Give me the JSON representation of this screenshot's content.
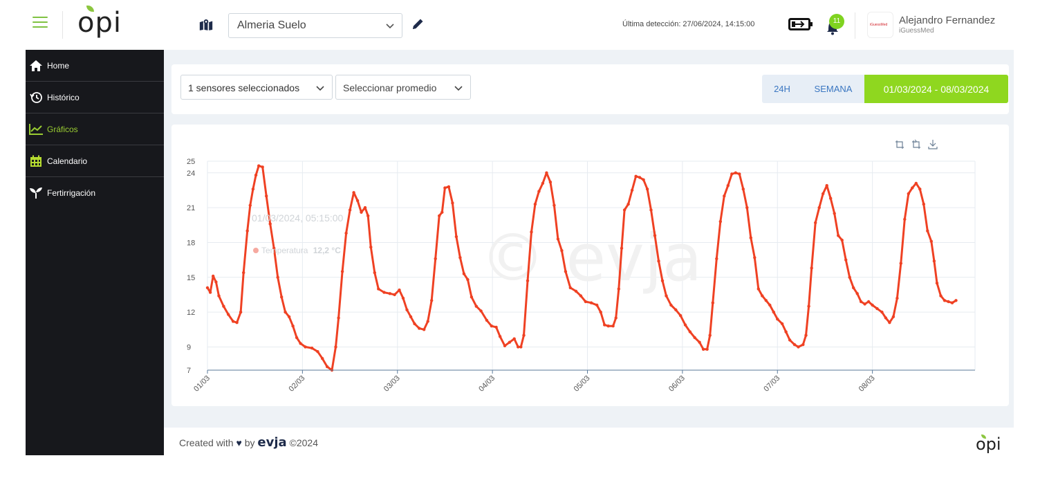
{
  "header": {
    "logo_text": "opi",
    "field_select_value": "Almeria Suelo",
    "last_detection": "Última detección: 27/06/2024, 14:15:00",
    "notification_count": "11",
    "user_name": "Alejandro Fernandez",
    "user_org": "iGuessMed",
    "avatar_text": "iGuessMed",
    "icons": [
      "menu-icon",
      "map-icon",
      "chevron-down-icon",
      "pencil-icon",
      "battery-charging-icon",
      "bell-icon"
    ]
  },
  "sidebar": {
    "items": [
      {
        "label": "Home",
        "icon": "home-icon"
      },
      {
        "label": "Histórico",
        "icon": "history-icon"
      },
      {
        "label": "Gráficos",
        "icon": "chart-line-icon",
        "active": true
      },
      {
        "label": "Calendario",
        "icon": "calendar-icon"
      },
      {
        "label": "Fertirrigación",
        "icon": "sprout-icon"
      }
    ]
  },
  "filters": {
    "sensors": "1 sensores seleccionados",
    "average": "Seleccionar promedio",
    "range_24h": "24H",
    "range_week": "SEMANA",
    "range_dates": "01/03/2024 - 08/03/2024"
  },
  "chart": {
    "watermark": "© evja",
    "tooltip_title": "01/03/2024, 05:15:00",
    "tooltip_label": "Temperatura",
    "tooltip_value": "12,2 °C",
    "tools": [
      "zoom-icon",
      "zoom-reset-icon",
      "download-icon"
    ]
  },
  "chart_data": {
    "type": "line",
    "title": "",
    "xlabel": "",
    "ylabel": "",
    "x_ticks": [
      "01/03",
      "02/03",
      "03/03",
      "04/03",
      "05/03",
      "06/03",
      "07/03",
      "08/03"
    ],
    "y_ticks": [
      7,
      9,
      12,
      15,
      18,
      21,
      24,
      25
    ],
    "ylim": [
      7,
      25
    ],
    "xlim": [
      0,
      8.08
    ],
    "grid": true,
    "colors": {
      "series": "#ef4123",
      "grid": "#e6ebf0",
      "axis": "#5a7a9a"
    },
    "series": [
      {
        "name": "Temperatura",
        "points": [
          [
            0.0,
            14.1
          ],
          [
            0.03,
            13.7
          ],
          [
            0.06,
            15.1
          ],
          [
            0.09,
            14.6
          ],
          [
            0.12,
            13.4
          ],
          [
            0.17,
            12.5
          ],
          [
            0.22,
            11.8
          ],
          [
            0.27,
            11.2
          ],
          [
            0.31,
            11.1
          ],
          [
            0.35,
            12.0
          ],
          [
            0.38,
            15.4
          ],
          [
            0.42,
            19.0
          ],
          [
            0.45,
            21.2
          ],
          [
            0.48,
            22.6
          ],
          [
            0.51,
            23.8
          ],
          [
            0.54,
            24.6
          ],
          [
            0.58,
            24.5
          ],
          [
            0.62,
            22.0
          ],
          [
            0.66,
            19.6
          ],
          [
            0.7,
            17.5
          ],
          [
            0.74,
            15.0
          ],
          [
            0.78,
            13.3
          ],
          [
            0.82,
            12.0
          ],
          [
            0.86,
            11.6
          ],
          [
            0.9,
            10.8
          ],
          [
            0.94,
            9.8
          ],
          [
            0.98,
            9.3
          ],
          [
            1.03,
            9.0
          ],
          [
            1.1,
            8.9
          ],
          [
            1.16,
            8.6
          ],
          [
            1.21,
            8.0
          ],
          [
            1.26,
            7.3
          ],
          [
            1.31,
            7.0
          ],
          [
            1.35,
            9.0
          ],
          [
            1.38,
            11.5
          ],
          [
            1.42,
            15.5
          ],
          [
            1.46,
            18.8
          ],
          [
            1.5,
            20.8
          ],
          [
            1.54,
            22.3
          ],
          [
            1.58,
            21.6
          ],
          [
            1.62,
            20.6
          ],
          [
            1.66,
            21.0
          ],
          [
            1.69,
            20.3
          ],
          [
            1.72,
            17.6
          ],
          [
            1.76,
            15.4
          ],
          [
            1.8,
            14.0
          ],
          [
            1.86,
            13.7
          ],
          [
            1.92,
            13.6
          ],
          [
            1.97,
            13.5
          ],
          [
            2.02,
            13.9
          ],
          [
            2.06,
            13.2
          ],
          [
            2.1,
            12.2
          ],
          [
            2.14,
            11.6
          ],
          [
            2.18,
            11.0
          ],
          [
            2.23,
            10.6
          ],
          [
            2.28,
            10.5
          ],
          [
            2.32,
            11.2
          ],
          [
            2.36,
            13.0
          ],
          [
            2.4,
            16.6
          ],
          [
            2.44,
            20.3
          ],
          [
            2.47,
            20.6
          ],
          [
            2.5,
            22.7
          ],
          [
            2.54,
            22.8
          ],
          [
            2.58,
            21.4
          ],
          [
            2.62,
            18.5
          ],
          [
            2.66,
            16.7
          ],
          [
            2.7,
            15.3
          ],
          [
            2.74,
            14.8
          ],
          [
            2.78,
            13.3
          ],
          [
            2.83,
            12.5
          ],
          [
            2.88,
            12.1
          ],
          [
            2.94,
            11.3
          ],
          [
            2.99,
            10.8
          ],
          [
            3.04,
            10.7
          ],
          [
            3.08,
            9.9
          ],
          [
            3.13,
            9.1
          ],
          [
            3.18,
            9.4
          ],
          [
            3.23,
            9.7
          ],
          [
            3.27,
            9.0
          ],
          [
            3.3,
            9.0
          ],
          [
            3.33,
            10.0
          ],
          [
            3.37,
            14.7
          ],
          [
            3.41,
            18.9
          ],
          [
            3.45,
            21.3
          ],
          [
            3.49,
            22.4
          ],
          [
            3.53,
            23.1
          ],
          [
            3.57,
            24.0
          ],
          [
            3.61,
            23.2
          ],
          [
            3.65,
            21.2
          ],
          [
            3.69,
            18.3
          ],
          [
            3.73,
            17.3
          ],
          [
            3.77,
            15.5
          ],
          [
            3.82,
            14.1
          ],
          [
            3.88,
            13.8
          ],
          [
            3.93,
            13.4
          ],
          [
            3.98,
            12.9
          ],
          [
            4.04,
            12.8
          ],
          [
            4.1,
            12.6
          ],
          [
            4.14,
            12.0
          ],
          [
            4.18,
            10.9
          ],
          [
            4.22,
            10.8
          ],
          [
            4.27,
            10.8
          ],
          [
            4.3,
            11.5
          ],
          [
            4.33,
            14.0
          ],
          [
            4.36,
            17.5
          ],
          [
            4.39,
            20.8
          ],
          [
            4.43,
            21.3
          ],
          [
            4.47,
            22.5
          ],
          [
            4.51,
            23.7
          ],
          [
            4.55,
            23.6
          ],
          [
            4.59,
            23.4
          ],
          [
            4.63,
            22.6
          ],
          [
            4.67,
            20.8
          ],
          [
            4.71,
            18.6
          ],
          [
            4.75,
            16.4
          ],
          [
            4.79,
            14.7
          ],
          [
            4.83,
            13.4
          ],
          [
            4.88,
            12.6
          ],
          [
            4.93,
            12.2
          ],
          [
            4.98,
            11.7
          ],
          [
            5.03,
            10.9
          ],
          [
            5.08,
            10.3
          ],
          [
            5.13,
            9.8
          ],
          [
            5.18,
            9.4
          ],
          [
            5.22,
            8.8
          ],
          [
            5.26,
            8.8
          ],
          [
            5.29,
            10.0
          ],
          [
            5.32,
            12.8
          ],
          [
            5.36,
            16.6
          ],
          [
            5.4,
            19.8
          ],
          [
            5.44,
            22.0
          ],
          [
            5.48,
            22.9
          ],
          [
            5.52,
            23.9
          ],
          [
            5.56,
            24.0
          ],
          [
            5.6,
            23.9
          ],
          [
            5.64,
            22.6
          ],
          [
            5.68,
            21.0
          ],
          [
            5.72,
            18.4
          ],
          [
            5.76,
            16.7
          ],
          [
            5.8,
            14.0
          ],
          [
            5.84,
            13.4
          ],
          [
            5.88,
            13.0
          ],
          [
            5.92,
            12.6
          ],
          [
            5.96,
            12.0
          ],
          [
            6.0,
            11.4
          ],
          [
            6.05,
            11.0
          ],
          [
            6.09,
            10.3
          ],
          [
            6.13,
            9.6
          ],
          [
            6.18,
            9.2
          ],
          [
            6.22,
            9.0
          ],
          [
            6.27,
            9.2
          ],
          [
            6.3,
            10.0
          ],
          [
            6.33,
            12.5
          ],
          [
            6.36,
            15.8
          ],
          [
            6.4,
            19.7
          ],
          [
            6.44,
            21.0
          ],
          [
            6.48,
            22.2
          ],
          [
            6.52,
            22.9
          ],
          [
            6.56,
            21.8
          ],
          [
            6.6,
            20.5
          ],
          [
            6.64,
            18.6
          ],
          [
            6.68,
            18.2
          ],
          [
            6.72,
            16.5
          ],
          [
            6.76,
            15.0
          ],
          [
            6.8,
            14.1
          ],
          [
            6.84,
            13.6
          ],
          [
            6.88,
            12.9
          ],
          [
            6.92,
            12.7
          ],
          [
            6.96,
            12.9
          ],
          [
            7.0,
            12.6
          ],
          [
            7.05,
            12.3
          ],
          [
            7.1,
            12.0
          ],
          [
            7.14,
            11.5
          ],
          [
            7.18,
            11.1
          ],
          [
            7.22,
            11.6
          ],
          [
            7.26,
            13.2
          ],
          [
            7.3,
            16.2
          ],
          [
            7.34,
            20.0
          ],
          [
            7.38,
            22.2
          ],
          [
            7.42,
            22.7
          ],
          [
            7.46,
            23.1
          ],
          [
            7.5,
            22.6
          ],
          [
            7.54,
            21.3
          ],
          [
            7.58,
            19.0
          ],
          [
            7.62,
            18.1
          ],
          [
            7.65,
            16.4
          ],
          [
            7.68,
            14.5
          ],
          [
            7.72,
            13.4
          ],
          [
            7.76,
            13.0
          ],
          [
            7.8,
            12.9
          ],
          [
            7.84,
            12.8
          ],
          [
            7.88,
            13.0
          ]
        ]
      }
    ]
  },
  "footer": {
    "text_before": "Created with",
    "heart": "♥",
    "by": "by",
    "brand": "evja",
    "year": "©2024",
    "logo": "opi"
  }
}
